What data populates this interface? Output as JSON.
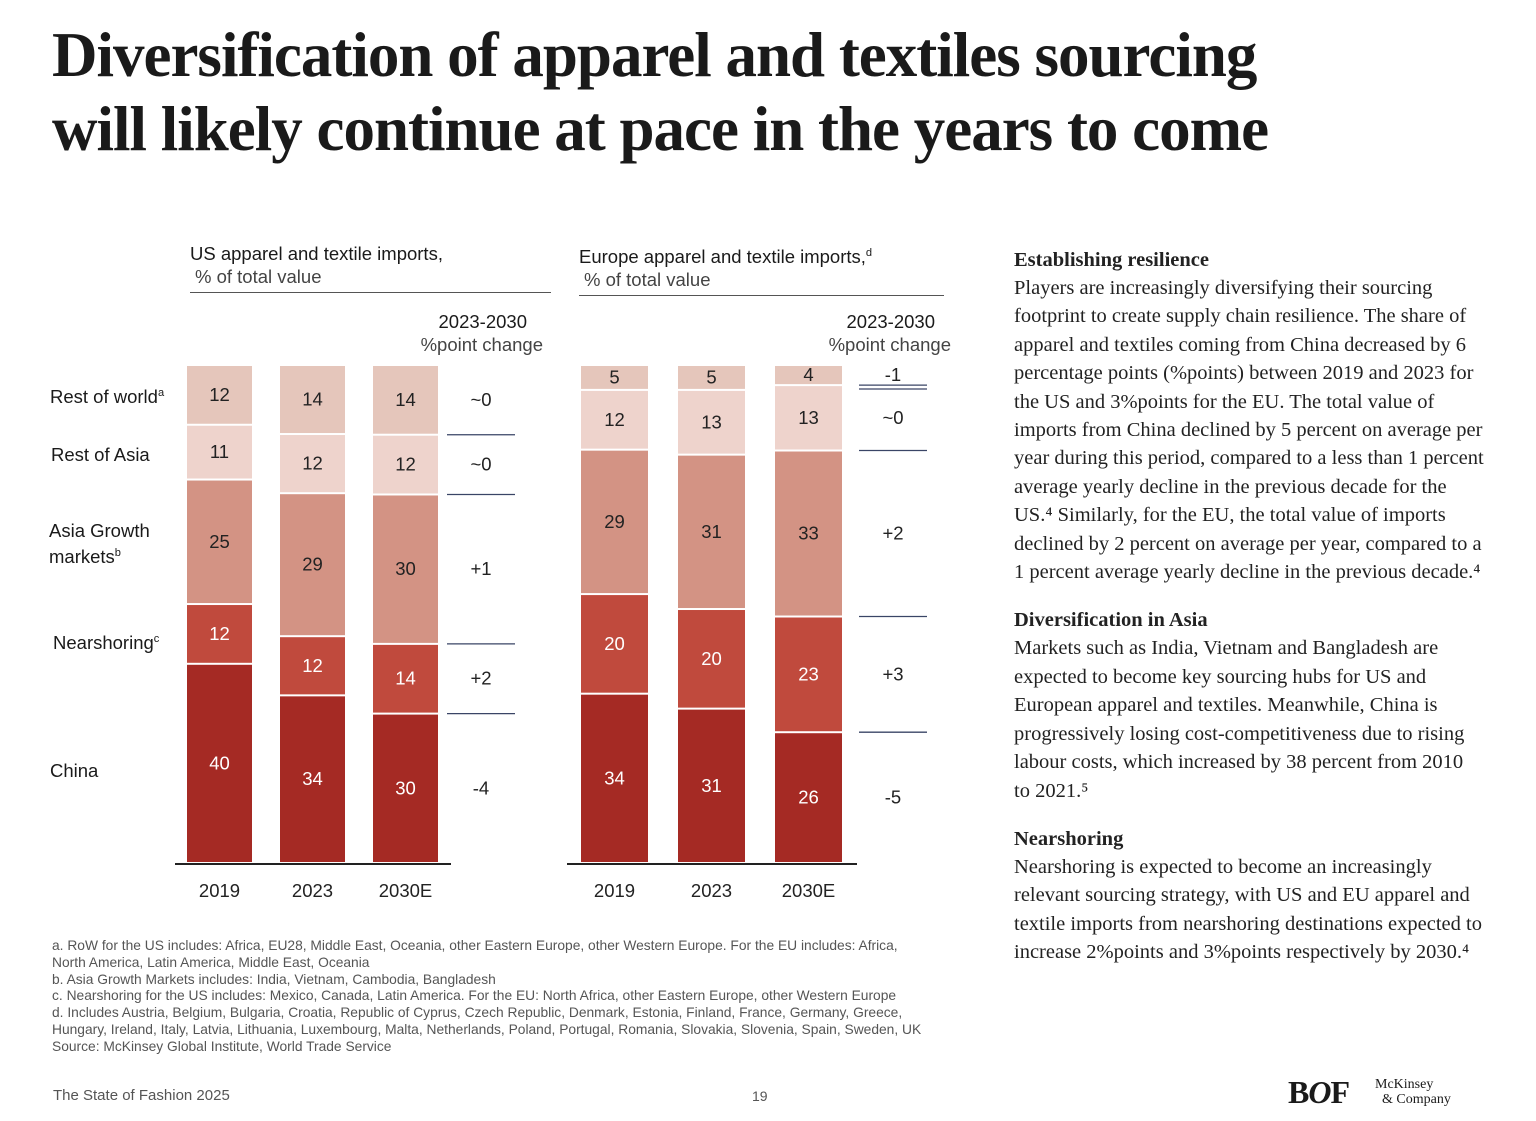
{
  "title": [
    "Diversification of apparel and textiles sourcing",
    "will likely continue at pace in the years to come"
  ],
  "categories": [
    "Rest of world",
    "Rest of Asia",
    "Asia Growth markets",
    "Nearshoring",
    "China"
  ],
  "category_labels": {
    "row": "Rest of world",
    "row_sup": "a",
    "roa": "Rest of Asia",
    "agm1": "Asia Growth",
    "agm2": "markets",
    "agm_sup": "b",
    "near": "Nearshoring",
    "near_sup": "c",
    "china": "China"
  },
  "colors": {
    "Rest of world": "#e5c6bb",
    "Rest of Asia": "#eed3cc",
    "Asia Growth markets": "#d39384",
    "Nearshoring": "#c04a3d",
    "China": "#a52a24",
    "separator": "#3a4566"
  },
  "chart_data": [
    {
      "type": "bar",
      "stacked": true,
      "title": "US apparel and textile imports,",
      "subtitle": "% of total value",
      "change_title": "2023-2030",
      "change_subtitle": "%point change",
      "categories": [
        "2019",
        "2023",
        "2030E"
      ],
      "series": [
        {
          "name": "China",
          "values": [
            40,
            34,
            30
          ]
        },
        {
          "name": "Nearshoring",
          "values": [
            12,
            12,
            14
          ]
        },
        {
          "name": "Asia Growth markets",
          "values": [
            25,
            29,
            30
          ]
        },
        {
          "name": "Rest of Asia",
          "values": [
            11,
            12,
            12
          ]
        },
        {
          "name": "Rest of world",
          "values": [
            12,
            14,
            14
          ]
        }
      ],
      "change": [
        "-4",
        "+2",
        "+1",
        "~0",
        "~0"
      ]
    },
    {
      "type": "bar",
      "stacked": true,
      "title": "Europe apparel and textile imports,",
      "title_sup": "d",
      "subtitle": "% of total value",
      "change_title": "2023-2030",
      "change_subtitle": "%point change",
      "categories": [
        "2019",
        "2023",
        "2030E"
      ],
      "series": [
        {
          "name": "China",
          "values": [
            34,
            31,
            26
          ]
        },
        {
          "name": "Nearshoring",
          "values": [
            20,
            20,
            23
          ]
        },
        {
          "name": "Asia Growth markets",
          "values": [
            29,
            31,
            33
          ]
        },
        {
          "name": "Rest of Asia",
          "values": [
            12,
            13,
            13
          ]
        },
        {
          "name": "Rest of world",
          "values": [
            5,
            5,
            4
          ]
        }
      ],
      "change": [
        "-5",
        "+3",
        "+2",
        "~0",
        "-1"
      ]
    }
  ],
  "footnotes": [
    "a. RoW for the US includes: Africa, EU28, Middle East, Oceania, other Eastern Europe, other Western Europe. For the EU includes: Africa,",
    "North America, Latin America, Middle East, Oceania",
    "b. Asia Growth Markets includes: India, Vietnam, Cambodia, Bangladesh",
    "c. Nearshoring for the US includes: Mexico, Canada, Latin America. For the EU: North Africa, other Eastern Europe, other Western Europe",
    "d. Includes Austria, Belgium, Bulgaria, Croatia, Republic of Cyprus, Czech Republic, Denmark, Estonia, Finland, France, Germany, Greece,",
    "Hungary, Ireland, Italy, Latvia, Lithuania, Luxembourg, Malta, Netherlands, Poland, Portugal, Romania, Slovakia, Slovenia, Spain, Sweden, UK",
    "Source: McKinsey Global Institute, World Trade Service"
  ],
  "sidebar": [
    {
      "heading": "Establishing resilience",
      "body": "Players are increasingly diversifying their sourcing footprint to create supply chain resilience. The share of apparel and textiles coming from China decreased by 6 percentage points (%points) between 2019 and 2023 for the US and 3%points for the EU. The total value of imports from China declined by 5 percent on average per year during this period, compared to a less than 1 percent average yearly decline in the previous decade for the US.⁴ Similarly, for the EU, the total value of imports declined by 2 percent on average per year, compared to a 1 percent average yearly decline in the previous decade.⁴"
    },
    {
      "heading": "Diversification in Asia",
      "body": "Markets such as India, Vietnam and Bangladesh are expected to become key sourcing hubs for US and European apparel and textiles. Meanwhile, China is progressively losing cost-competitiveness due to rising labour costs, which increased by 38 percent from 2010 to 2021.⁵"
    },
    {
      "heading": "Nearshoring",
      "body": "Nearshoring is expected to become an increasingly relevant sourcing strategy, with US and EU apparel and textile imports from nearshoring destinations expected to increase 2%points and 3%points respectively by 2030.⁴"
    }
  ],
  "footer": {
    "publication": "The State of Fashion 2025",
    "page": "19",
    "logo_bof": "BOF",
    "logo_mck_1": "McKinsey",
    "logo_mck_2": "& Company"
  }
}
